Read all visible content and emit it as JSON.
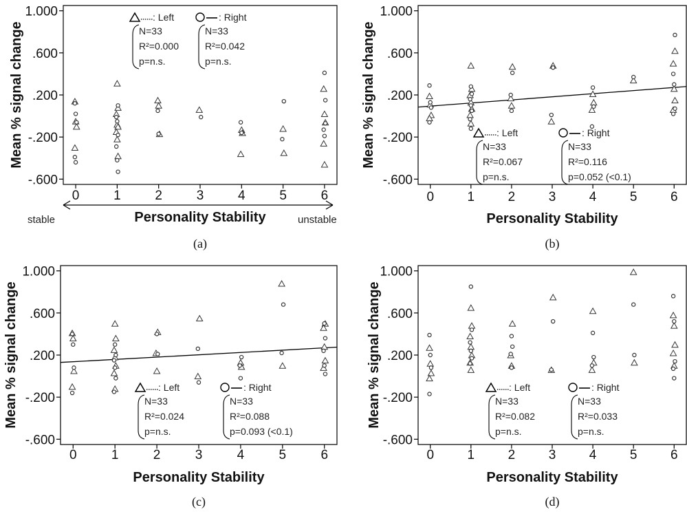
{
  "figure": {
    "panels": [
      {
        "id": "a",
        "caption": "(a)",
        "ylabel": "Mean % signal change",
        "xlabel": "Personality Stability",
        "yticks": [
          "1.000",
          ".600",
          ".200",
          "-.200",
          "-.600"
        ],
        "xticks": [
          "0",
          "1",
          "2",
          "3",
          "4",
          "5",
          "6"
        ],
        "arrow_left_label": "stable",
        "arrow_right_label": "unstable",
        "left_stats": {
          "legend": ": Left",
          "n": "N=33",
          "r2": "R²=0.000",
          "p": "p=n.s."
        },
        "right_stats": {
          "legend": ": Right",
          "n": "N=33",
          "r2": "R²=0.042",
          "p": "p=n.s."
        }
      },
      {
        "id": "b",
        "caption": "(b)",
        "ylabel": "Mean % signal change",
        "xlabel": "Personality Stability",
        "yticks": [
          "1.000",
          ".600",
          ".200",
          "-.200",
          "-.600"
        ],
        "xticks": [
          "0",
          "1",
          "2",
          "3",
          "4",
          "5",
          "6"
        ],
        "left_stats": {
          "legend": ": Left",
          "n": "N=33",
          "r2": "R²=0.067",
          "p": "p=n.s."
        },
        "right_stats": {
          "legend": ": Right",
          "n": "N=33",
          "r2": "R²=0.116",
          "p": "p=0.052 (<0.1)"
        }
      },
      {
        "id": "c",
        "caption": "(c)",
        "ylabel": "Mean % signal change",
        "xlabel": "Personality Stability",
        "yticks": [
          "1.000",
          ".600",
          ".200",
          "-.200",
          "-.600"
        ],
        "xticks": [
          "0",
          "1",
          "2",
          "3",
          "4",
          "5",
          "6"
        ],
        "left_stats": {
          "legend": ": Left",
          "n": "N=33",
          "r2": "R²=0.024",
          "p": "p=n.s."
        },
        "right_stats": {
          "legend": ": Right",
          "n": "N=33",
          "r2": "R²=0.088",
          "p": "p=0.093 (<0.1)"
        }
      },
      {
        "id": "d",
        "caption": "(d)",
        "ylabel": "Mean % signal change",
        "xlabel": "Personality Stability",
        "yticks": [
          "1.000",
          ".600",
          ".200",
          "-.200",
          "-.600"
        ],
        "xticks": [
          "0",
          "1",
          "2",
          "3",
          "4",
          "5",
          "6"
        ],
        "left_stats": {
          "legend": ": Left",
          "n": "N=33",
          "r2": "R²=0.082",
          "p": "p=n.s."
        },
        "right_stats": {
          "legend": ": Right",
          "n": "N=33",
          "r2": "R²=0.033",
          "p": "p=n.s."
        }
      }
    ]
  },
  "chart_data": [
    {
      "type": "scatter",
      "panel": "a",
      "xlabel": "Personality Stability",
      "ylabel": "Mean % signal change",
      "xlim": [
        -0.3,
        6.3
      ],
      "ylim": [
        -0.65,
        1.05
      ],
      "regression_line": false,
      "series": [
        {
          "name": "Left",
          "marker": "triangle",
          "points": [
            [
              0,
              0.14
            ],
            [
              0,
              -0.05
            ],
            [
              0,
              -0.1
            ],
            [
              0,
              -0.3
            ],
            [
              1,
              0.31
            ],
            [
              1,
              0.08
            ],
            [
              1,
              0.02
            ],
            [
              1,
              -0.08
            ],
            [
              1,
              -0.1
            ],
            [
              1,
              -0.15
            ],
            [
              1,
              -0.22
            ],
            [
              1,
              -0.38
            ],
            [
              2,
              0.15
            ],
            [
              2,
              0.1
            ],
            [
              2,
              -0.17
            ],
            [
              3,
              0.06
            ],
            [
              4,
              -0.13
            ],
            [
              4,
              -0.16
            ],
            [
              4,
              -0.36
            ],
            [
              5,
              -0.12
            ],
            [
              5,
              -0.35
            ],
            [
              6,
              0.26
            ],
            [
              6,
              0.02
            ],
            [
              6,
              -0.06
            ],
            [
              6,
              -0.26
            ],
            [
              6,
              -0.46
            ]
          ]
        },
        {
          "name": "Right",
          "marker": "circle",
          "points": [
            [
              0,
              0.12
            ],
            [
              0,
              0.02
            ],
            [
              0,
              -0.06
            ],
            [
              0,
              -0.39
            ],
            [
              0,
              -0.44
            ],
            [
              1,
              0.1
            ],
            [
              1,
              -0.01
            ],
            [
              1,
              -0.05
            ],
            [
              1,
              -0.18
            ],
            [
              1,
              -0.29
            ],
            [
              1,
              -0.42
            ],
            [
              1,
              -0.53
            ],
            [
              2,
              0.05
            ],
            [
              2,
              -0.17
            ],
            [
              3,
              -0.01
            ],
            [
              4,
              -0.06
            ],
            [
              4,
              -0.16
            ],
            [
              5,
              0.14
            ],
            [
              5,
              -0.22
            ],
            [
              6,
              0.41
            ],
            [
              6,
              0.15
            ],
            [
              6,
              -0.13
            ],
            [
              6,
              -0.19
            ],
            [
              6,
              -0.07
            ]
          ]
        }
      ]
    },
    {
      "type": "scatter",
      "panel": "b",
      "xlabel": "Personality Stability",
      "ylabel": "Mean % signal change",
      "xlim": [
        -0.3,
        6.3
      ],
      "ylim": [
        -0.65,
        1.05
      ],
      "regression_line": true,
      "regression": {
        "x": [
          -0.3,
          6.3
        ],
        "y": [
          0.085,
          0.28
        ]
      },
      "series": [
        {
          "name": "Left",
          "marker": "triangle",
          "points": [
            [
              0,
              0.19
            ],
            [
              0,
              0.11
            ],
            [
              0,
              0.01
            ],
            [
              0,
              -0.02
            ],
            [
              1,
              0.48
            ],
            [
              1,
              0.26
            ],
            [
              1,
              0.2
            ],
            [
              1,
              0.13
            ],
            [
              1,
              0.07
            ],
            [
              1,
              0.01
            ],
            [
              1,
              -0.07
            ],
            [
              2,
              0.47
            ],
            [
              2,
              0.17
            ],
            [
              2,
              0.1
            ],
            [
              3,
              0.48
            ],
            [
              3,
              -0.05
            ],
            [
              4,
              0.21
            ],
            [
              4,
              0.13
            ],
            [
              4,
              0.06
            ],
            [
              5,
              0.34
            ],
            [
              6,
              0.62
            ],
            [
              6,
              0.5
            ],
            [
              6,
              0.26
            ],
            [
              6,
              0.15
            ],
            [
              6,
              0.06
            ]
          ]
        },
        {
          "name": "Right",
          "marker": "circle",
          "points": [
            [
              0,
              0.29
            ],
            [
              0,
              0.13
            ],
            [
              0,
              0.08
            ],
            [
              0,
              -0.06
            ],
            [
              1,
              0.28
            ],
            [
              1,
              0.21
            ],
            [
              1,
              0.16
            ],
            [
              1,
              0.1
            ],
            [
              1,
              0.05
            ],
            [
              1,
              -0.03
            ],
            [
              1,
              -0.12
            ],
            [
              2,
              0.41
            ],
            [
              2,
              0.2
            ],
            [
              2,
              0.05
            ],
            [
              3,
              0.46
            ],
            [
              3,
              0.01
            ],
            [
              4,
              0.27
            ],
            [
              4,
              0.09
            ],
            [
              4,
              -0.1
            ],
            [
              5,
              0.37
            ],
            [
              6,
              0.77
            ],
            [
              6,
              0.4
            ],
            [
              6,
              0.3
            ],
            [
              6,
              0.07
            ],
            [
              6,
              0.02
            ]
          ]
        }
      ]
    },
    {
      "type": "scatter",
      "panel": "c",
      "xlabel": "Personality Stability",
      "ylabel": "Mean % signal change",
      "xlim": [
        -0.3,
        6.3
      ],
      "ylim": [
        -0.65,
        1.05
      ],
      "regression_line": true,
      "regression": {
        "x": [
          -0.3,
          6.3
        ],
        "y": [
          0.13,
          0.275
        ]
      },
      "series": [
        {
          "name": "Left",
          "marker": "triangle",
          "points": [
            [
              0,
              0.41
            ],
            [
              0,
              0.36
            ],
            [
              0,
              0.05
            ],
            [
              0,
              -0.1
            ],
            [
              1,
              0.5
            ],
            [
              1,
              0.36
            ],
            [
              1,
              0.25
            ],
            [
              1,
              0.18
            ],
            [
              1,
              0.1
            ],
            [
              1,
              0.03
            ],
            [
              1,
              -0.12
            ],
            [
              2,
              0.42
            ],
            [
              2,
              0.22
            ],
            [
              2,
              0.05
            ],
            [
              3,
              0.55
            ],
            [
              3,
              0.0
            ],
            [
              4,
              0.13
            ],
            [
              4,
              0.09
            ],
            [
              5,
              0.88
            ],
            [
              5,
              0.1
            ],
            [
              6,
              0.5
            ],
            [
              6,
              0.46
            ],
            [
              6,
              0.28
            ],
            [
              6,
              0.15
            ],
            [
              6,
              0.08
            ]
          ]
        },
        {
          "name": "Right",
          "marker": "circle",
          "points": [
            [
              0,
              0.4
            ],
            [
              0,
              0.3
            ],
            [
              0,
              0.08
            ],
            [
              0,
              -0.16
            ],
            [
              1,
              0.3
            ],
            [
              1,
              0.2
            ],
            [
              1,
              0.15
            ],
            [
              1,
              0.08
            ],
            [
              1,
              -0.02
            ],
            [
              1,
              -0.15
            ],
            [
              2,
              0.4
            ],
            [
              2,
              0.21
            ],
            [
              3,
              0.26
            ],
            [
              3,
              -0.06
            ],
            [
              4,
              0.18
            ],
            [
              4,
              0.1
            ],
            [
              4,
              -0.02
            ],
            [
              5,
              0.68
            ],
            [
              5,
              0.22
            ],
            [
              6,
              0.5
            ],
            [
              6,
              0.36
            ],
            [
              6,
              0.24
            ],
            [
              6,
              0.1
            ],
            [
              6,
              0.02
            ]
          ]
        }
      ]
    },
    {
      "type": "scatter",
      "panel": "d",
      "xlabel": "Personality Stability",
      "ylabel": "Mean % signal change",
      "xlim": [
        -0.3,
        6.3
      ],
      "ylim": [
        -0.65,
        1.05
      ],
      "regression_line": false,
      "series": [
        {
          "name": "Left",
          "marker": "triangle",
          "points": [
            [
              0,
              0.27
            ],
            [
              0,
              0.12
            ],
            [
              0,
              0.03
            ],
            [
              0,
              -0.02
            ],
            [
              1,
              0.65
            ],
            [
              1,
              0.48
            ],
            [
              1,
              0.38
            ],
            [
              1,
              0.28
            ],
            [
              1,
              0.2
            ],
            [
              1,
              0.13
            ],
            [
              1,
              0.06
            ],
            [
              2,
              0.5
            ],
            [
              2,
              0.2
            ],
            [
              2,
              0.1
            ],
            [
              3,
              0.75
            ],
            [
              3,
              0.06
            ],
            [
              4,
              0.62
            ],
            [
              4,
              0.13
            ],
            [
              4,
              0.06
            ],
            [
              5,
              0.99
            ],
            [
              5,
              0.13
            ],
            [
              6,
              0.58
            ],
            [
              6,
              0.48
            ],
            [
              6,
              0.3
            ],
            [
              6,
              0.22
            ],
            [
              6,
              0.1
            ]
          ]
        },
        {
          "name": "Right",
          "marker": "circle",
          "points": [
            [
              0,
              0.39
            ],
            [
              0,
              0.2
            ],
            [
              0,
              0.08
            ],
            [
              0,
              -0.17
            ],
            [
              1,
              0.85
            ],
            [
              1,
              0.44
            ],
            [
              1,
              0.32
            ],
            [
              1,
              0.24
            ],
            [
              1,
              0.17
            ],
            [
              1,
              0.12
            ],
            [
              2,
              0.38
            ],
            [
              2,
              0.28
            ],
            [
              2,
              0.21
            ],
            [
              2,
              0.08
            ],
            [
              3,
              0.52
            ],
            [
              3,
              0.06
            ],
            [
              4,
              0.41
            ],
            [
              4,
              0.18
            ],
            [
              4,
              0.1
            ],
            [
              5,
              0.68
            ],
            [
              5,
              0.2
            ],
            [
              6,
              0.76
            ],
            [
              6,
              0.52
            ],
            [
              6,
              0.14
            ],
            [
              6,
              0.07
            ],
            [
              6,
              -0.02
            ]
          ]
        }
      ]
    }
  ]
}
